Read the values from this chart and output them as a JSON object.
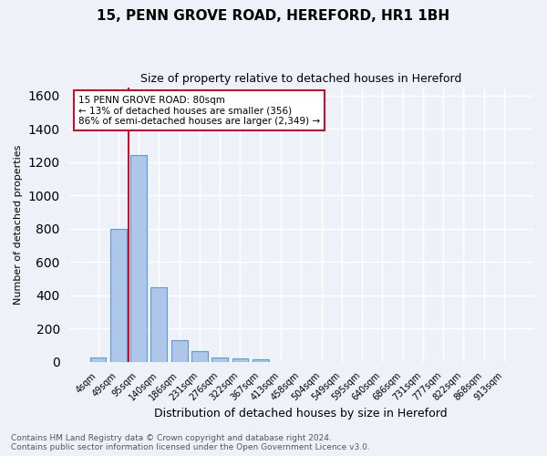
{
  "title": "15, PENN GROVE ROAD, HEREFORD, HR1 1BH",
  "subtitle": "Size of property relative to detached houses in Hereford",
  "xlabel": "Distribution of detached houses by size in Hereford",
  "ylabel": "Number of detached properties",
  "bar_labels": [
    "4sqm",
    "49sqm",
    "95sqm",
    "140sqm",
    "186sqm",
    "231sqm",
    "276sqm",
    "322sqm",
    "367sqm",
    "413sqm",
    "458sqm",
    "504sqm",
    "549sqm",
    "595sqm",
    "640sqm",
    "686sqm",
    "731sqm",
    "777sqm",
    "822sqm",
    "868sqm",
    "913sqm"
  ],
  "bar_values": [
    25,
    800,
    1240,
    450,
    130,
    65,
    28,
    18,
    15,
    0,
    0,
    0,
    0,
    0,
    0,
    0,
    0,
    0,
    0,
    0,
    0
  ],
  "bar_color": "#aec6e8",
  "bar_edge_color": "#5b9bd5",
  "vline_x": 1.5,
  "vline_color": "#c8102e",
  "ylim": [
    0,
    1650
  ],
  "yticks": [
    0,
    200,
    400,
    600,
    800,
    1000,
    1200,
    1400,
    1600
  ],
  "annotation_text": "15 PENN GROVE ROAD: 80sqm\n← 13% of detached houses are smaller (356)\n86% of semi-detached houses are larger (2,349) →",
  "annotation_box_color": "#ffffff",
  "annotation_box_edge_color": "#c8102e",
  "footnote_line1": "Contains HM Land Registry data © Crown copyright and database right 2024.",
  "footnote_line2": "Contains public sector information licensed under the Open Government Licence v3.0.",
  "bg_color": "#eef2f8",
  "grid_color": "#ffffff",
  "title_fontsize": 11,
  "subtitle_fontsize": 9,
  "ylabel_fontsize": 8,
  "xlabel_fontsize": 9,
  "tick_fontsize": 7,
  "footnote_fontsize": 6.5
}
